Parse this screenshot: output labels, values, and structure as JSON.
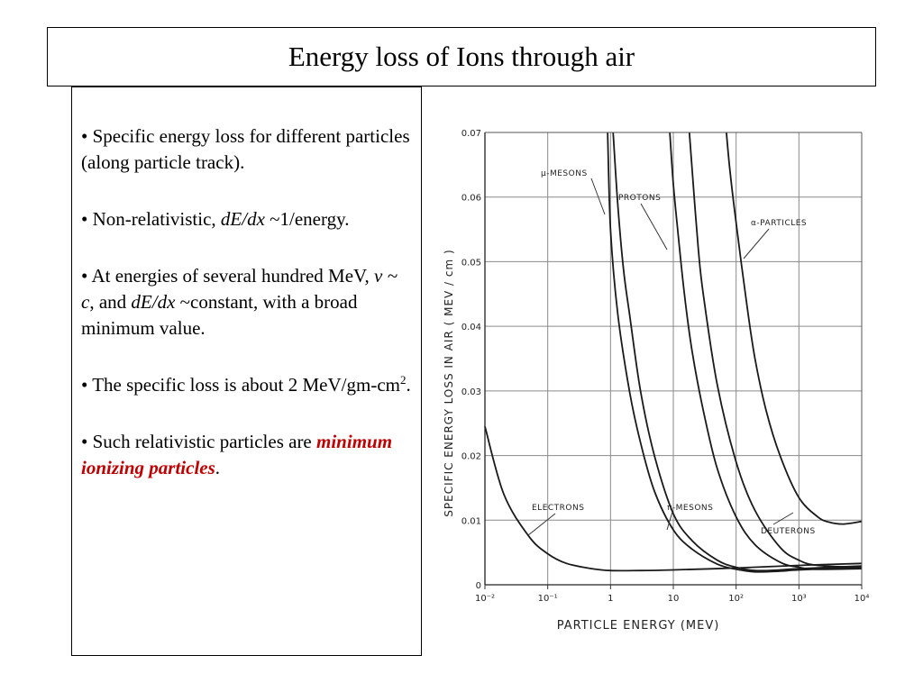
{
  "slide": {
    "title": "Energy loss of Ions through air",
    "bullets": {
      "b1": "• Specific energy loss for different particles (along particle track).",
      "b2_pre": "• Non-relativistic, ",
      "b2_em": "dE/dx",
      "b2_post": " ~1/energy.",
      "b3_pre": "• At energies of several hundred MeV, ",
      "b3_em1": "v ~ c",
      "b3_mid": ", and ",
      "b3_em2": "dE/dx",
      "b3_post": " ~constant, with a broad minimum value.",
      "b4_pre": "• The specific loss is about 2 MeV/gm-cm",
      "b4_sup": "2",
      "b4_post": ".",
      "b5_pre": "• Such relativistic particles are ",
      "b5_red": "minimum ionizing particles",
      "b5_post": "."
    }
  },
  "chart_data": {
    "type": "line",
    "xlabel": "PARTICLE ENERGY (MEV)",
    "ylabel": "SPECIFIC ENERGY LOSS IN AIR ( MEV / cm )",
    "xscale": "log",
    "xlim": [
      0.01,
      10000
    ],
    "ylim": [
      0,
      0.07
    ],
    "x_tick_labels": [
      "10⁻²",
      "10⁻¹",
      "1",
      "10",
      "10²",
      "10³",
      "10⁴"
    ],
    "y_tick_labels": [
      "0",
      "0.01",
      "0.02",
      "0.03",
      "0.04",
      "0.05",
      "0.06",
      "0.07"
    ],
    "grid": true,
    "series": [
      {
        "name": "ELECTRONS",
        "x": [
          0.01,
          0.02,
          0.05,
          0.1,
          0.2,
          0.5,
          1,
          3,
          10,
          100,
          1000,
          10000
        ],
        "y": [
          0.0245,
          0.014,
          0.0075,
          0.0048,
          0.0033,
          0.0025,
          0.0022,
          0.0022,
          0.0023,
          0.0026,
          0.003,
          0.0033
        ]
      },
      {
        "name": "μ-MESONS",
        "x": [
          0.9,
          1,
          1.3,
          2,
          3,
          5,
          10,
          20,
          50,
          100,
          200,
          500,
          1000,
          10000
        ],
        "y": [
          0.07,
          0.055,
          0.042,
          0.03,
          0.022,
          0.0145,
          0.0085,
          0.0055,
          0.0032,
          0.0024,
          0.002,
          0.0021,
          0.0023,
          0.0027
        ]
      },
      {
        "name": "π-MESONS",
        "x": [
          1.1,
          1.3,
          1.6,
          2,
          3,
          5,
          10,
          20,
          50,
          100,
          200,
          500,
          1000,
          10000
        ],
        "y": [
          0.07,
          0.059,
          0.049,
          0.042,
          0.03,
          0.02,
          0.011,
          0.0068,
          0.0038,
          0.0027,
          0.0022,
          0.0023,
          0.0025,
          0.0029
        ]
      },
      {
        "name": "PROTONS",
        "x": [
          8.8,
          10,
          12,
          15,
          20,
          30,
          50,
          100,
          200,
          500,
          1000,
          2000,
          10000
        ],
        "y": [
          0.07,
          0.062,
          0.054,
          0.045,
          0.036,
          0.027,
          0.018,
          0.0105,
          0.0062,
          0.0035,
          0.0027,
          0.0024,
          0.0025
        ]
      },
      {
        "name": "DEUTERONS",
        "x": [
          18,
          20,
          25,
          30,
          50,
          100,
          200,
          500,
          1000,
          2000,
          10000
        ],
        "y": [
          0.07,
          0.064,
          0.052,
          0.045,
          0.031,
          0.019,
          0.0115,
          0.0058,
          0.0038,
          0.003,
          0.0027
        ]
      },
      {
        "name": "α-PARTICLES",
        "x": [
          70,
          80,
          100,
          150,
          200,
          300,
          500,
          1000,
          2000,
          3000,
          5000,
          10000
        ],
        "y": [
          0.07,
          0.064,
          0.056,
          0.043,
          0.035,
          0.027,
          0.02,
          0.0135,
          0.0105,
          0.0097,
          0.0094,
          0.0098
        ]
      }
    ]
  }
}
